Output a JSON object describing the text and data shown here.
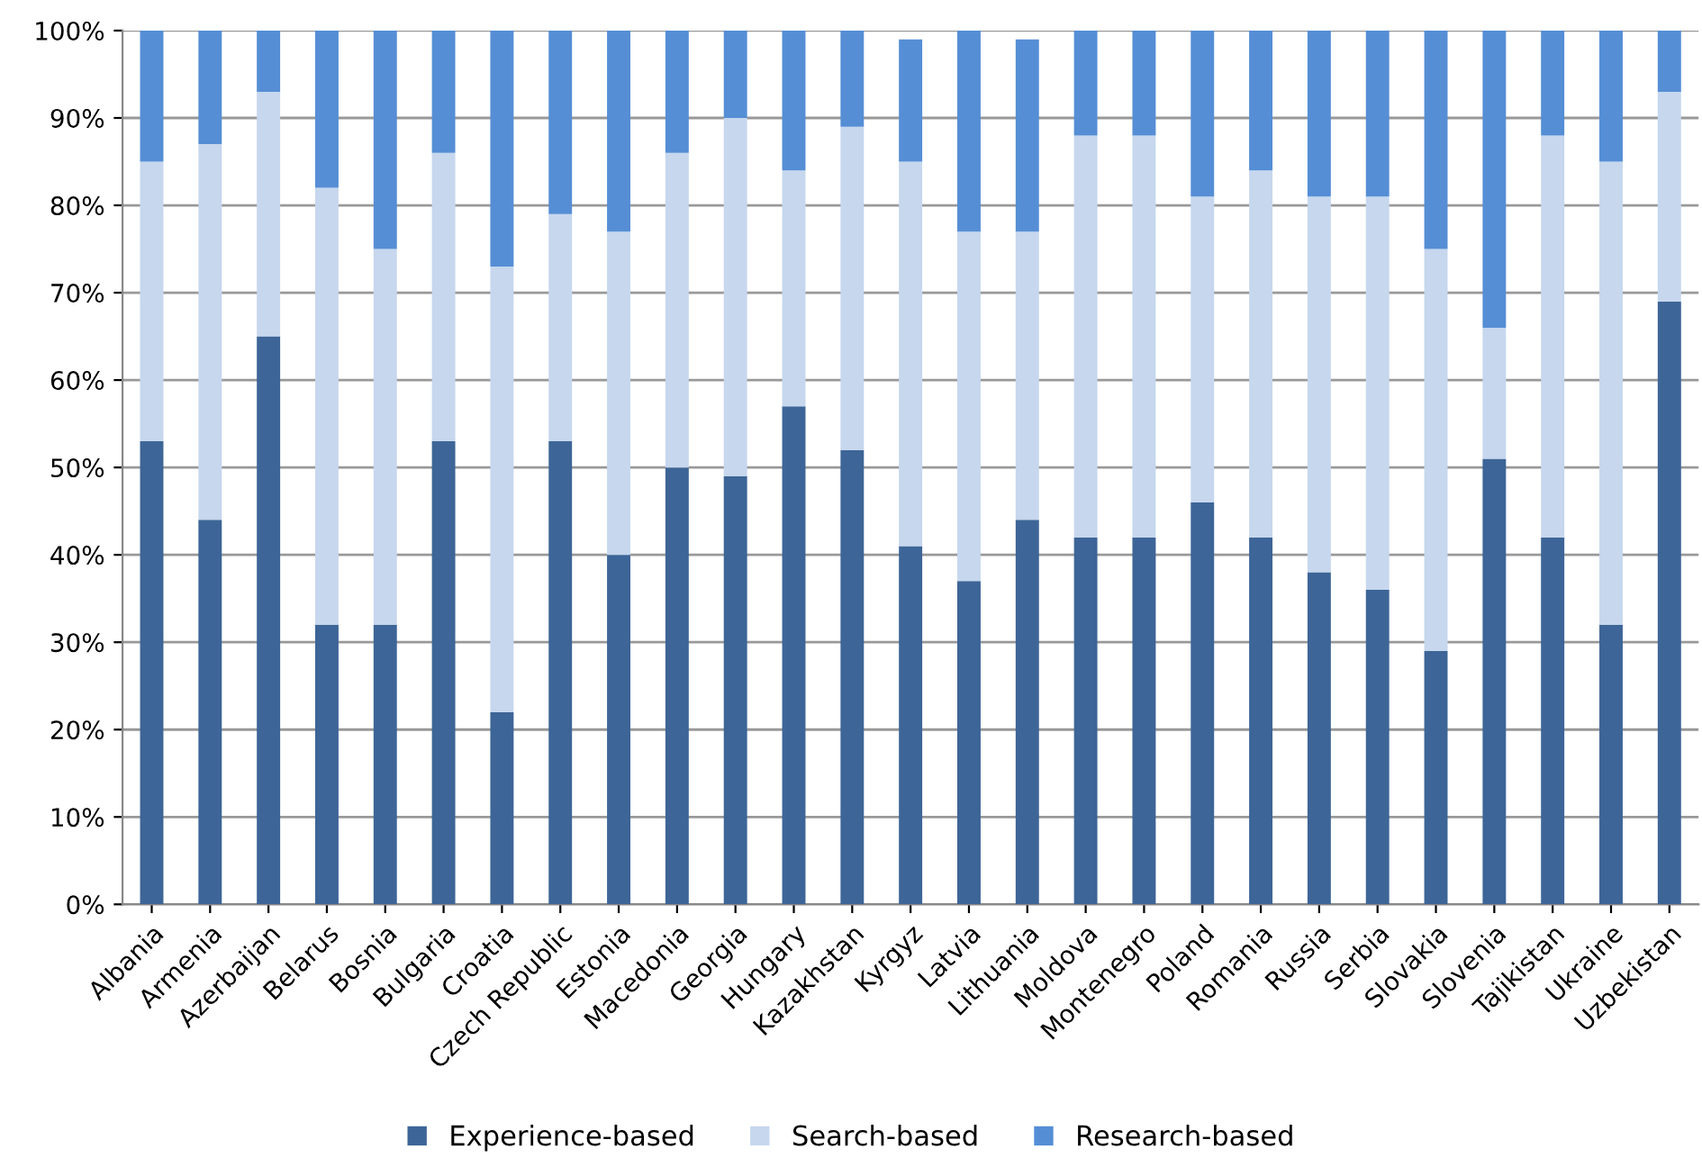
{
  "chart_data": {
    "type": "bar",
    "stacked": true,
    "categories": [
      "Albania",
      "Armenia",
      "Azerbaijan",
      "Belarus",
      "Bosnia",
      "Bulgaria",
      "Croatia",
      "Czech Republic",
      "Estonia",
      "Macedonia",
      "Georgia",
      "Hungary",
      "Kazakhstan",
      "Kyrgyz",
      "Latvia",
      "Lithuania",
      "Moldova",
      "Montenegro",
      "Poland",
      "Romania",
      "Russia",
      "Serbia",
      "Slovakia",
      "Slovenia",
      "Tajikistan",
      "Ukraine",
      "Uzbekistan"
    ],
    "series": [
      {
        "name": "Experience-based",
        "color": "#3d6597",
        "values": [
          53,
          44,
          65,
          32,
          32,
          53,
          22,
          53,
          40,
          50,
          49,
          57,
          52,
          41,
          37,
          44,
          42,
          42,
          46,
          42,
          38,
          36,
          29,
          51,
          42,
          32,
          69
        ]
      },
      {
        "name": "Search-based",
        "color": "#c6d7ee",
        "values": [
          32,
          43,
          28,
          50,
          43,
          33,
          51,
          26,
          37,
          36,
          41,
          27,
          37,
          44,
          40,
          33,
          46,
          46,
          35,
          42,
          43,
          45,
          46,
          15,
          46,
          53,
          24
        ]
      },
      {
        "name": "Research-based",
        "color": "#558ed5",
        "values": [
          15,
          13,
          7,
          18,
          25,
          14,
          27,
          21,
          23,
          14,
          10,
          16,
          11,
          14,
          23,
          22,
          12,
          12,
          19,
          16,
          19,
          19,
          25,
          34,
          12,
          15,
          7
        ]
      }
    ],
    "ylim": [
      0,
      100
    ],
    "yticks": [
      {
        "value": 0,
        "label": "0%"
      },
      {
        "value": 10,
        "label": "10%"
      },
      {
        "value": 20,
        "label": "20%"
      },
      {
        "value": 30,
        "label": "30%"
      },
      {
        "value": 40,
        "label": "40%"
      },
      {
        "value": 50,
        "label": "50%"
      },
      {
        "value": 60,
        "label": "60%"
      },
      {
        "value": 70,
        "label": "70%"
      },
      {
        "value": 80,
        "label": "80%"
      },
      {
        "value": 90,
        "label": "90%"
      },
      {
        "value": 100,
        "label": "100%"
      }
    ],
    "grid": "y",
    "legend": "bottom"
  }
}
